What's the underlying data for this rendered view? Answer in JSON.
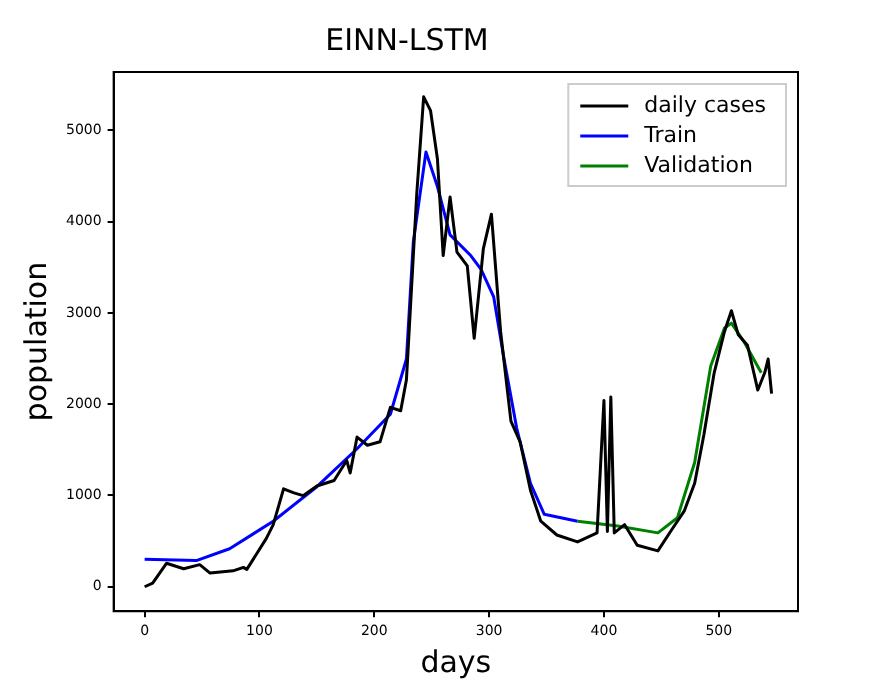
{
  "chart_data": {
    "type": "line",
    "title": "EINN-LSTM",
    "xlabel": "days",
    "ylabel": "population",
    "xlim": [
      -27,
      569
    ],
    "ylim": [
      -268,
      5640
    ],
    "xticks": [
      0,
      100,
      200,
      300,
      400,
      500
    ],
    "yticks": [
      0,
      1000,
      2000,
      3000,
      4000,
      5000
    ],
    "grid": false,
    "legend": "top right",
    "series": [
      {
        "name": "daily cases",
        "color": "#000000",
        "x": [
          0,
          7,
          19,
          34,
          48,
          57,
          77,
          86,
          89,
          106,
          112,
          121,
          130,
          138,
          150,
          165,
          176,
          179,
          185,
          194,
          205,
          214,
          223,
          228,
          237,
          243,
          249,
          255,
          260,
          266,
          272,
          281,
          287,
          295,
          302,
          310,
          319,
          327,
          336,
          345,
          359,
          377,
          394,
          400,
          403,
          406,
          409,
          418,
          429,
          447,
          458,
          470,
          479,
          487,
          496,
          505,
          511,
          517,
          525,
          534,
          540,
          543,
          546
        ],
        "values": [
          0,
          40,
          257,
          197,
          242,
          150,
          174,
          212,
          190,
          530,
          680,
          1073,
          1028,
          998,
          1104,
          1164,
          1383,
          1247,
          1640,
          1550,
          1588,
          1966,
          1928,
          2268,
          4309,
          5368,
          5216,
          4687,
          3629,
          4271,
          3667,
          3515,
          2722,
          3704,
          4082,
          2797,
          1814,
          1588,
          1058,
          718,
          567,
          491,
          590,
          2041,
          605,
          2079,
          590,
          680,
          454,
          393,
          605,
          832,
          1134,
          1663,
          2344,
          2797,
          3024,
          2760,
          2646,
          2155,
          2344,
          2495,
          2117
        ]
      },
      {
        "name": "Train",
        "color": "#0000ff",
        "x": [
          0,
          45,
          74,
          112,
          150,
          185,
          214,
          228,
          234,
          245,
          255,
          266,
          284,
          293,
          304,
          313,
          324,
          336,
          348,
          377
        ],
        "values": [
          302,
          287,
          416,
          718,
          1096,
          1512,
          1890,
          2495,
          3780,
          4763,
          4385,
          3856,
          3629,
          3478,
          3175,
          2495,
          1739,
          1134,
          794,
          718
        ]
      },
      {
        "name": "Validation",
        "color": "#008000",
        "x": [
          377,
          412,
          447,
          464,
          479,
          493,
          505,
          511,
          522,
          537
        ],
        "values": [
          718,
          665,
          590,
          756,
          1361,
          2419,
          2835,
          2888,
          2684,
          2344
        ]
      }
    ]
  }
}
